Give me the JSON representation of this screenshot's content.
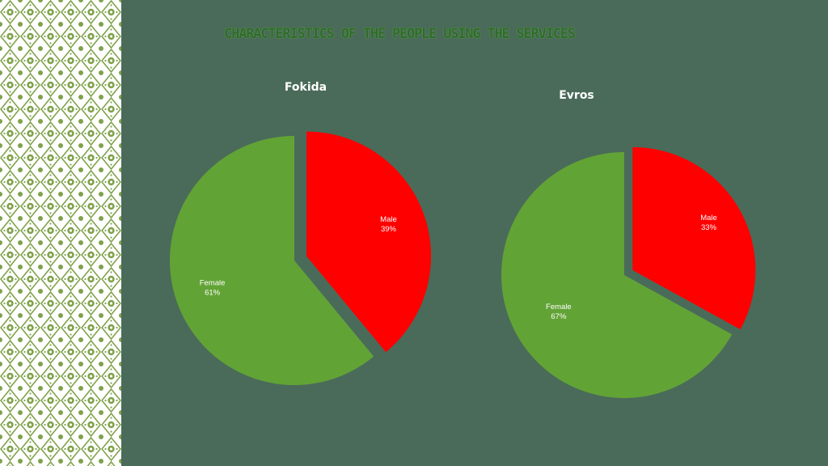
{
  "slide": {
    "title": "CHARACTERISTICS OF THE PEOPLE USING THE SERVICES"
  },
  "colors": {
    "background": "#4a6b59",
    "male": "#ff0000",
    "female": "#62a336",
    "pattern": "#7fa24a"
  },
  "chart_data": [
    {
      "type": "pie",
      "title": "Fokida",
      "categories": [
        "Male",
        "Female"
      ],
      "values": [
        39,
        61
      ],
      "labels": [
        "39%",
        "61%"
      ],
      "colors": [
        "#ff0000",
        "#62a336"
      ],
      "legend": "none",
      "exploded": "Male"
    },
    {
      "type": "pie",
      "title": "Evros",
      "categories": [
        "Male",
        "Female"
      ],
      "values": [
        33,
        67
      ],
      "labels": [
        "33%",
        "67%"
      ],
      "colors": [
        "#ff0000",
        "#62a336"
      ],
      "legend": "none",
      "exploded": "Male"
    }
  ]
}
